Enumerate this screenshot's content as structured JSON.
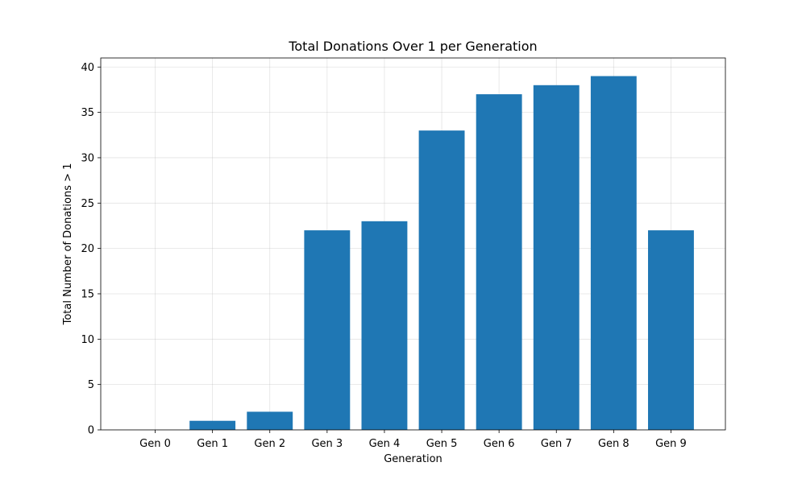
{
  "chart_data": {
    "type": "bar",
    "title": "Total Donations Over 1 per Generation",
    "xlabel": "Generation",
    "ylabel": "Total Number of Donations > 1",
    "categories": [
      "Gen 0",
      "Gen 1",
      "Gen 2",
      "Gen 3",
      "Gen 4",
      "Gen 5",
      "Gen 6",
      "Gen 7",
      "Gen 8",
      "Gen 9"
    ],
    "values": [
      0,
      1,
      2,
      22,
      23,
      33,
      37,
      38,
      39,
      22
    ],
    "ylim": [
      0,
      41
    ],
    "yticks": [
      0,
      5,
      10,
      15,
      20,
      25,
      30,
      35,
      40
    ],
    "grid": true,
    "bar_color": "#1f77b4"
  }
}
